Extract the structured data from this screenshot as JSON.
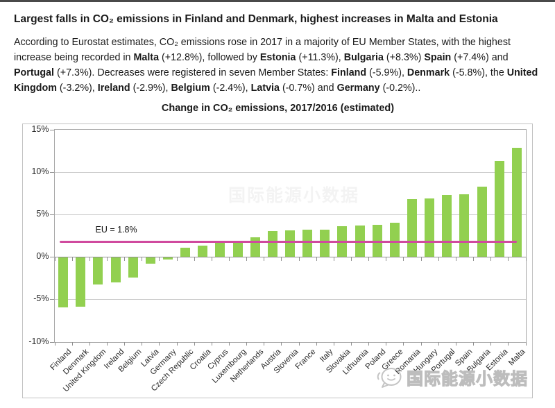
{
  "header": {
    "title": "Largest falls in CO₂ emissions in Finland and Denmark, highest increases in Malta and Estonia",
    "paragraph_segments": [
      {
        "text": "According to Eurostat estimates, CO₂ emissions rose in 2017 in a majority of EU Member States, with the highest increase being recorded in ",
        "bold": false
      },
      {
        "text": "Malta",
        "bold": true
      },
      {
        "text": " (+12.8%), followed by ",
        "bold": false
      },
      {
        "text": "Estonia",
        "bold": true
      },
      {
        "text": " (+11.3%), ",
        "bold": false
      },
      {
        "text": "Bulgaria",
        "bold": true
      },
      {
        "text": " (+8.3%) ",
        "bold": false
      },
      {
        "text": "Spain",
        "bold": true
      },
      {
        "text": " (+7.4%) and ",
        "bold": false
      },
      {
        "text": "Portugal",
        "bold": true
      },
      {
        "text": " (+7.3%). Decreases were registered in seven Member States: ",
        "bold": false
      },
      {
        "text": "Finland",
        "bold": true
      },
      {
        "text": " (-5.9%), ",
        "bold": false
      },
      {
        "text": "Denmark",
        "bold": true
      },
      {
        "text": " (-5.8%), the ",
        "bold": false
      },
      {
        "text": "United Kingdom",
        "bold": true
      },
      {
        "text": " (-3.2%), ",
        "bold": false
      },
      {
        "text": "Ireland",
        "bold": true
      },
      {
        "text": " (-2.9%), ",
        "bold": false
      },
      {
        "text": "Belgium",
        "bold": true
      },
      {
        "text": " (-2.4%), ",
        "bold": false
      },
      {
        "text": "Latvia",
        "bold": true
      },
      {
        "text": " (-0.7%) and ",
        "bold": false
      },
      {
        "text": "Germany",
        "bold": true
      },
      {
        "text": " (-0.2%)..",
        "bold": false
      }
    ]
  },
  "chart_data": {
    "type": "bar",
    "title": "Change in CO₂ emissions, 2017/2016 (estimated)",
    "categories": [
      "Finland",
      "Denmark",
      "United Kingdom",
      "Ireland",
      "Belgium",
      "Latvia",
      "Germany",
      "Czech Republic",
      "Croatia",
      "Cyprus",
      "Luxembourg",
      "Netherlands",
      "Austria",
      "Slovenia",
      "France",
      "Italy",
      "Slovakia",
      "Lithuania",
      "Poland",
      "Greece",
      "Romania",
      "Hungary",
      "Portugal",
      "Spain",
      "Bulgaria",
      "Estonia",
      "Malta"
    ],
    "values": [
      -5.9,
      -5.8,
      -3.2,
      -2.9,
      -2.4,
      -0.7,
      -0.2,
      1.1,
      1.3,
      1.7,
      1.8,
      2.3,
      3.0,
      3.1,
      3.2,
      3.2,
      3.6,
      3.7,
      3.8,
      4.0,
      6.8,
      6.9,
      7.3,
      7.4,
      8.3,
      11.3,
      12.8
    ],
    "ylim": [
      -10,
      15
    ],
    "ytick_values": [
      15,
      10,
      5,
      0,
      -5,
      -10
    ],
    "ytick_labels": [
      "15%",
      "10%",
      "5%",
      "0%",
      "-5%",
      "-10%"
    ],
    "grid": "horizontal",
    "legend_position": "none",
    "bar_color": "#92d050",
    "reference_line": {
      "value": 1.8,
      "label": "EU = 1.8%",
      "color": "#d04a9e"
    }
  },
  "watermark": {
    "text": "国际能源小数据",
    "icon": "chat-bubble-face-logo"
  }
}
